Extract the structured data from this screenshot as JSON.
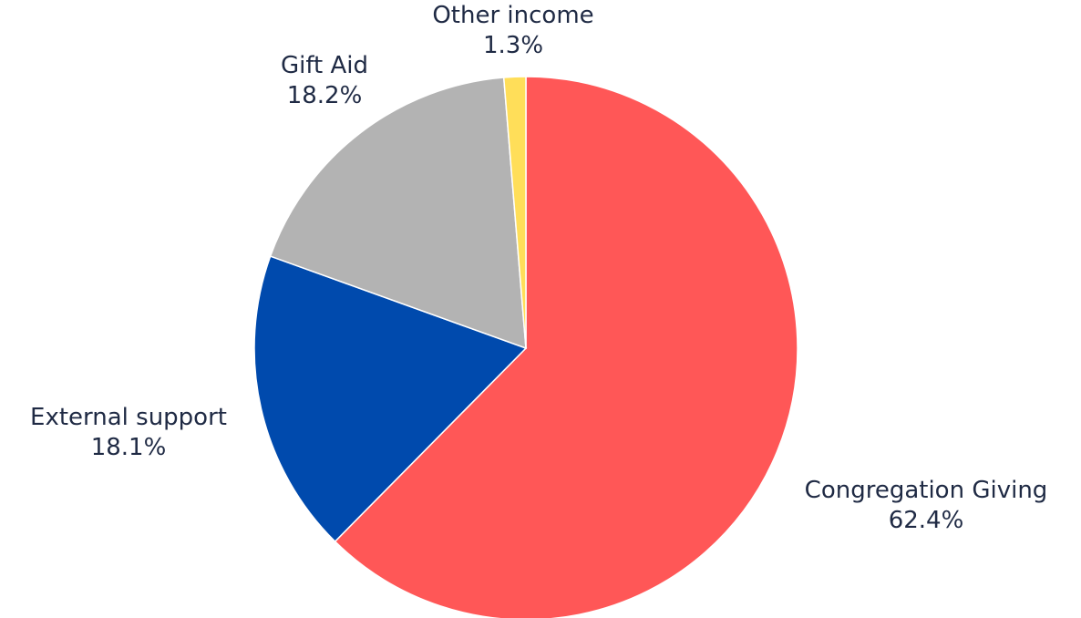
{
  "chart_data": {
    "type": "pie",
    "start_angle_deg": 0,
    "direction": "clockwise",
    "slices": [
      {
        "name": "Congregation Giving",
        "value": 62.4,
        "label": "62.4%",
        "color": "#ff5757"
      },
      {
        "name": "External support",
        "value": 18.1,
        "label": "18.1%",
        "color": "#004aad"
      },
      {
        "name": "Gift Aid",
        "value": 18.2,
        "label": "18.2%",
        "color": "#b3b3b3"
      },
      {
        "name": "Other income",
        "value": 1.3,
        "label": "1.3%",
        "color": "#ffde59"
      }
    ]
  }
}
